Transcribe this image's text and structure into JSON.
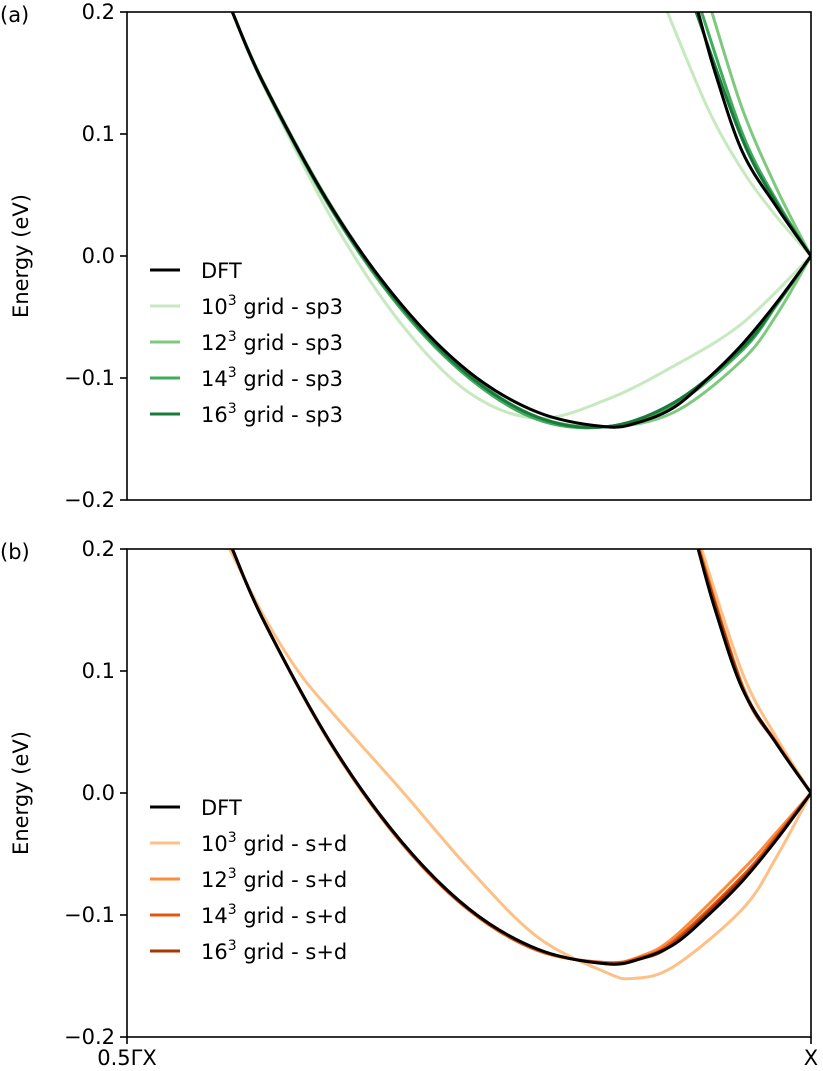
{
  "chart_data": [
    {
      "type": "line",
      "panel_label": "(a)",
      "ylabel": "Energy (eV)",
      "ylim": [
        -0.2,
        0.2
      ],
      "yticks": [
        0.2,
        0.1,
        0.0,
        -0.1,
        -0.2
      ],
      "ytick_labels": [
        "0.2",
        "0.1",
        "0.0",
        "−0.1",
        "−0.2"
      ],
      "xlim": [
        0,
        1
      ],
      "xtick_labels": [],
      "legend_position": "lower-left",
      "series": [
        {
          "name": "DFT",
          "legend_base": "DFT",
          "legend_sup": "",
          "legend_rest": "",
          "color": "#000000",
          "lower_band": [
            [
              0.154,
              0.2
            ],
            [
              0.2,
              0.141
            ],
            [
              0.3,
              0.039
            ],
            [
              0.4,
              -0.039
            ],
            [
              0.5,
              -0.095
            ],
            [
              0.6,
              -0.128
            ],
            [
              0.7,
              -0.14
            ],
            [
              0.75,
              -0.136
            ],
            [
              0.8,
              -0.124
            ],
            [
              0.85,
              -0.1
            ],
            [
              0.9,
              -0.072
            ],
            [
              0.95,
              -0.038
            ],
            [
              1.0,
              0.0
            ]
          ],
          "upper_band": [
            [
              0.835,
              0.2
            ],
            [
              0.86,
              0.15
            ],
            [
              0.9,
              0.085
            ],
            [
              0.95,
              0.04
            ],
            [
              1.0,
              0.0
            ]
          ]
        },
        {
          "name": "10 grid - sp3",
          "legend_base": "10",
          "legend_sup": "3",
          "legend_rest": " grid - sp3",
          "color": "#c7e9c0",
          "lower_band": [
            [
              0.154,
              0.2
            ],
            [
              0.2,
              0.14
            ],
            [
              0.3,
              0.03
            ],
            [
              0.4,
              -0.055
            ],
            [
              0.5,
              -0.112
            ],
            [
              0.6,
              -0.133
            ],
            [
              0.7,
              -0.118
            ],
            [
              0.8,
              -0.09
            ],
            [
              0.9,
              -0.055
            ],
            [
              1.0,
              0.0
            ]
          ],
          "upper_band": [
            [
              0.79,
              0.2
            ],
            [
              0.85,
              0.12
            ],
            [
              0.9,
              0.07
            ],
            [
              0.95,
              0.032
            ],
            [
              1.0,
              0.0
            ]
          ]
        },
        {
          "name": "12 grid - sp3",
          "legend_base": "12",
          "legend_sup": "3",
          "legend_rest": " grid - sp3",
          "color": "#7fc97f",
          "lower_band": [
            [
              0.154,
              0.2
            ],
            [
              0.2,
              0.142
            ],
            [
              0.3,
              0.04
            ],
            [
              0.4,
              -0.04
            ],
            [
              0.5,
              -0.097
            ],
            [
              0.6,
              -0.132
            ],
            [
              0.7,
              -0.14
            ],
            [
              0.8,
              -0.128
            ],
            [
              0.9,
              -0.085
            ],
            [
              0.95,
              -0.048
            ],
            [
              1.0,
              0.0
            ]
          ],
          "upper_band": [
            [
              0.855,
              0.2
            ],
            [
              0.9,
              0.12
            ],
            [
              0.95,
              0.055
            ],
            [
              1.0,
              0.0
            ]
          ]
        },
        {
          "name": "14 grid - sp3",
          "legend_base": "14",
          "legend_sup": "3",
          "legend_rest": " grid - sp3",
          "color": "#41ab5d",
          "lower_band": [
            [
              0.154,
              0.2
            ],
            [
              0.2,
              0.14
            ],
            [
              0.3,
              0.037
            ],
            [
              0.4,
              -0.043
            ],
            [
              0.5,
              -0.1
            ],
            [
              0.6,
              -0.134
            ],
            [
              0.7,
              -0.14
            ],
            [
              0.8,
              -0.122
            ],
            [
              0.9,
              -0.077
            ],
            [
              0.95,
              -0.04
            ],
            [
              1.0,
              0.0
            ]
          ],
          "upper_band": [
            [
              0.84,
              0.2
            ],
            [
              0.9,
              0.1
            ],
            [
              0.95,
              0.045
            ],
            [
              1.0,
              0.0
            ]
          ]
        },
        {
          "name": "16 grid - sp3",
          "legend_base": "16",
          "legend_sup": "3",
          "legend_rest": " grid - sp3",
          "color": "#1a7a3c",
          "lower_band": [
            [
              0.154,
              0.2
            ],
            [
              0.2,
              0.141
            ],
            [
              0.3,
              0.038
            ],
            [
              0.4,
              -0.041
            ],
            [
              0.5,
              -0.098
            ],
            [
              0.6,
              -0.132
            ],
            [
              0.7,
              -0.14
            ],
            [
              0.8,
              -0.12
            ],
            [
              0.9,
              -0.075
            ],
            [
              0.95,
              -0.039
            ],
            [
              1.0,
              0.0
            ]
          ],
          "upper_band": [
            [
              0.832,
              0.2
            ],
            [
              0.9,
              0.095
            ],
            [
              0.95,
              0.043
            ],
            [
              1.0,
              0.0
            ]
          ]
        }
      ]
    },
    {
      "type": "line",
      "panel_label": "(b)",
      "ylabel": "Energy (eV)",
      "ylim": [
        -0.2,
        0.2
      ],
      "yticks": [
        0.2,
        0.1,
        0.0,
        -0.1,
        -0.2
      ],
      "ytick_labels": [
        "0.2",
        "0.1",
        "0.0",
        "−0.1",
        "−0.2"
      ],
      "xlim": [
        0,
        1
      ],
      "xtick_labels": [
        "0.5ΓX",
        "X"
      ],
      "legend_position": "lower-left",
      "series": [
        {
          "name": "DFT",
          "legend_base": "DFT",
          "legend_sup": "",
          "legend_rest": "",
          "color": "#000000",
          "lower_band": [
            [
              0.154,
              0.2
            ],
            [
              0.2,
              0.141
            ],
            [
              0.3,
              0.039
            ],
            [
              0.4,
              -0.039
            ],
            [
              0.5,
              -0.095
            ],
            [
              0.6,
              -0.128
            ],
            [
              0.7,
              -0.14
            ],
            [
              0.75,
              -0.136
            ],
            [
              0.8,
              -0.124
            ],
            [
              0.85,
              -0.1
            ],
            [
              0.9,
              -0.072
            ],
            [
              0.95,
              -0.038
            ],
            [
              1.0,
              0.0
            ]
          ],
          "upper_band": [
            [
              0.835,
              0.2
            ],
            [
              0.86,
              0.15
            ],
            [
              0.9,
              0.085
            ],
            [
              0.95,
              0.04
            ],
            [
              1.0,
              0.0
            ]
          ]
        },
        {
          "name": "10 grid - s+d",
          "legend_base": "10",
          "legend_sup": "3",
          "legend_rest": " grid - s+d",
          "color": "#fdc086",
          "lower_band": [
            [
              0.15,
              0.2
            ],
            [
              0.2,
              0.145
            ],
            [
              0.25,
              0.1
            ],
            [
              0.3,
              0.066
            ],
            [
              0.4,
              0.003
            ],
            [
              0.5,
              -0.062
            ],
            [
              0.6,
              -0.118
            ],
            [
              0.7,
              -0.147
            ],
            [
              0.74,
              -0.152
            ],
            [
              0.8,
              -0.142
            ],
            [
              0.9,
              -0.095
            ],
            [
              0.95,
              -0.052
            ],
            [
              1.0,
              0.0
            ]
          ],
          "upper_band": [
            [
              0.84,
              0.2
            ],
            [
              0.9,
              0.098
            ],
            [
              0.95,
              0.045
            ],
            [
              1.0,
              0.0
            ]
          ]
        },
        {
          "name": "12 grid - s+d",
          "legend_base": "12",
          "legend_sup": "3",
          "legend_rest": " grid - s+d",
          "color": "#fd8d3c",
          "lower_band": [
            [
              0.154,
              0.2
            ],
            [
              0.2,
              0.141
            ],
            [
              0.3,
              0.038
            ],
            [
              0.4,
              -0.04
            ],
            [
              0.5,
              -0.096
            ],
            [
              0.6,
              -0.129
            ],
            [
              0.7,
              -0.139
            ],
            [
              0.75,
              -0.134
            ],
            [
              0.8,
              -0.118
            ],
            [
              0.9,
              -0.063
            ],
            [
              0.95,
              -0.032
            ],
            [
              1.0,
              0.0
            ]
          ],
          "upper_band": [
            [
              0.837,
              0.2
            ],
            [
              0.9,
              0.088
            ],
            [
              0.95,
              0.041
            ],
            [
              1.0,
              0.0
            ]
          ]
        },
        {
          "name": "14 grid - s+d",
          "legend_base": "14",
          "legend_sup": "3",
          "legend_rest": " grid - s+d",
          "color": "#e6550d",
          "lower_band": [
            [
              0.154,
              0.2
            ],
            [
              0.2,
              0.141
            ],
            [
              0.3,
              0.039
            ],
            [
              0.4,
              -0.04
            ],
            [
              0.5,
              -0.096
            ],
            [
              0.6,
              -0.129
            ],
            [
              0.7,
              -0.139
            ],
            [
              0.75,
              -0.135
            ],
            [
              0.8,
              -0.121
            ],
            [
              0.9,
              -0.068
            ],
            [
              0.95,
              -0.035
            ],
            [
              1.0,
              0.0
            ]
          ],
          "upper_band": [
            [
              0.836,
              0.2
            ],
            [
              0.9,
              0.087
            ],
            [
              0.95,
              0.041
            ],
            [
              1.0,
              0.0
            ]
          ]
        },
        {
          "name": "16 grid - s+d",
          "legend_base": "16",
          "legend_sup": "3",
          "legend_rest": " grid - s+d",
          "color": "#a63603",
          "lower_band": [
            [
              0.154,
              0.2
            ],
            [
              0.2,
              0.141
            ],
            [
              0.3,
              0.039
            ],
            [
              0.4,
              -0.039
            ],
            [
              0.5,
              -0.095
            ],
            [
              0.6,
              -0.128
            ],
            [
              0.7,
              -0.14
            ],
            [
              0.75,
              -0.136
            ],
            [
              0.8,
              -0.123
            ],
            [
              0.9,
              -0.07
            ],
            [
              0.95,
              -0.037
            ],
            [
              1.0,
              0.0
            ]
          ],
          "upper_band": [
            [
              0.835,
              0.2
            ],
            [
              0.9,
              0.086
            ],
            [
              0.95,
              0.04
            ],
            [
              1.0,
              0.0
            ]
          ]
        }
      ]
    }
  ]
}
